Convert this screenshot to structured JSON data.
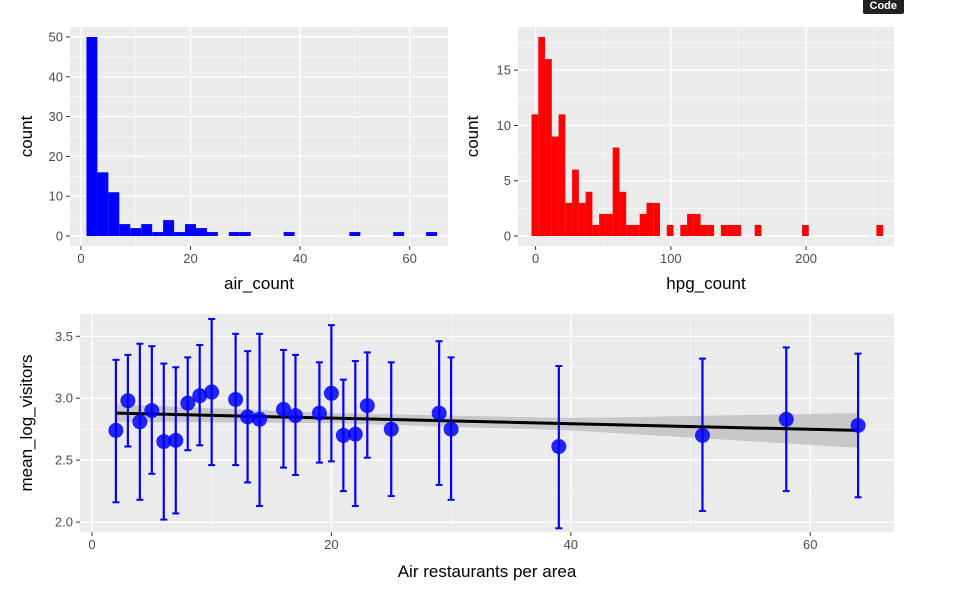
{
  "code_button": {
    "label": "Code"
  },
  "chart_data": [
    {
      "type": "bar",
      "xlabel": "air_count",
      "ylabel": "count",
      "xlim": [
        -2,
        67
      ],
      "ylim": [
        -2.5,
        52.5
      ],
      "xticks": [
        0,
        20,
        40,
        60
      ],
      "yticks": [
        0,
        10,
        20,
        30,
        40,
        50
      ],
      "bin_width": 2,
      "bars_color": "#0000ff",
      "bins": [
        {
          "x0": 1,
          "x1": 3,
          "count": 50
        },
        {
          "x0": 3,
          "x1": 5,
          "count": 16
        },
        {
          "x0": 5,
          "x1": 7,
          "count": 11
        },
        {
          "x0": 7,
          "x1": 9,
          "count": 3
        },
        {
          "x0": 9,
          "x1": 11,
          "count": 2
        },
        {
          "x0": 11,
          "x1": 13,
          "count": 3
        },
        {
          "x0": 13,
          "x1": 15,
          "count": 1
        },
        {
          "x0": 15,
          "x1": 17,
          "count": 4
        },
        {
          "x0": 17,
          "x1": 19,
          "count": 1
        },
        {
          "x0": 19,
          "x1": 21,
          "count": 3
        },
        {
          "x0": 21,
          "x1": 23,
          "count": 2
        },
        {
          "x0": 23,
          "x1": 25,
          "count": 1
        },
        {
          "x0": 27,
          "x1": 29,
          "count": 1
        },
        {
          "x0": 29,
          "x1": 31,
          "count": 1
        },
        {
          "x0": 37,
          "x1": 39,
          "count": 1
        },
        {
          "x0": 49,
          "x1": 51,
          "count": 1
        },
        {
          "x0": 57,
          "x1": 59,
          "count": 1
        },
        {
          "x0": 63,
          "x1": 65,
          "count": 1
        }
      ]
    },
    {
      "type": "bar",
      "xlabel": "hpg_count",
      "ylabel": "count",
      "xlim": [
        -13,
        265
      ],
      "ylim": [
        -0.9,
        18.9
      ],
      "xticks": [
        0,
        100,
        200
      ],
      "yticks": [
        0,
        5,
        10,
        15
      ],
      "bin_width": 5,
      "bars_color": "#ff0000",
      "bins": [
        {
          "x0": -3,
          "x1": 2,
          "count": 11
        },
        {
          "x0": 2,
          "x1": 7,
          "count": 18
        },
        {
          "x0": 7,
          "x1": 12,
          "count": 16
        },
        {
          "x0": 12,
          "x1": 17,
          "count": 9
        },
        {
          "x0": 17,
          "x1": 22,
          "count": 11
        },
        {
          "x0": 22,
          "x1": 27,
          "count": 3
        },
        {
          "x0": 27,
          "x1": 32,
          "count": 6
        },
        {
          "x0": 32,
          "x1": 37,
          "count": 3
        },
        {
          "x0": 37,
          "x1": 42,
          "count": 4
        },
        {
          "x0": 42,
          "x1": 47,
          "count": 1
        },
        {
          "x0": 47,
          "x1": 52,
          "count": 2
        },
        {
          "x0": 52,
          "x1": 57,
          "count": 2
        },
        {
          "x0": 57,
          "x1": 62,
          "count": 8
        },
        {
          "x0": 62,
          "x1": 67,
          "count": 4
        },
        {
          "x0": 67,
          "x1": 72,
          "count": 1
        },
        {
          "x0": 72,
          "x1": 77,
          "count": 1
        },
        {
          "x0": 77,
          "x1": 82,
          "count": 2
        },
        {
          "x0": 82,
          "x1": 87,
          "count": 3
        },
        {
          "x0": 87,
          "x1": 92,
          "count": 3
        },
        {
          "x0": 97,
          "x1": 102,
          "count": 1
        },
        {
          "x0": 107,
          "x1": 112,
          "count": 1
        },
        {
          "x0": 112,
          "x1": 117,
          "count": 2
        },
        {
          "x0": 117,
          "x1": 122,
          "count": 2
        },
        {
          "x0": 122,
          "x1": 127,
          "count": 1
        },
        {
          "x0": 127,
          "x1": 132,
          "count": 1
        },
        {
          "x0": 137,
          "x1": 142,
          "count": 1
        },
        {
          "x0": 142,
          "x1": 147,
          "count": 1
        },
        {
          "x0": 147,
          "x1": 152,
          "count": 1
        },
        {
          "x0": 162,
          "x1": 167,
          "count": 1
        },
        {
          "x0": 197,
          "x1": 202,
          "count": 1
        },
        {
          "x0": 252,
          "x1": 257,
          "count": 1
        }
      ]
    },
    {
      "type": "scatter",
      "xlabel": "Air restaurants per area",
      "ylabel": "mean_log_visitors",
      "xlim": [
        -1,
        67
      ],
      "ylim": [
        1.92,
        3.68
      ],
      "xticks": [
        0,
        20,
        40,
        60
      ],
      "yticks": [
        2.0,
        2.5,
        3.0,
        3.5
      ],
      "point_color": "#0000ff",
      "errorbar_color": "#0000ff",
      "smooth": {
        "color": "#000000",
        "band_color": "#c2c2c2",
        "line": [
          [
            2,
            2.88
          ],
          [
            64,
            2.74
          ]
        ],
        "band_upper": [
          [
            2,
            2.95
          ],
          [
            20,
            2.88
          ],
          [
            40,
            2.84
          ],
          [
            64,
            2.88
          ]
        ],
        "band_lower": [
          [
            2,
            2.81
          ],
          [
            20,
            2.8
          ],
          [
            40,
            2.74
          ],
          [
            64,
            2.6
          ]
        ]
      },
      "points": [
        {
          "x": 2,
          "y": 2.74,
          "ymin": 2.16,
          "ymax": 3.31
        },
        {
          "x": 3,
          "y": 2.98,
          "ymin": 2.61,
          "ymax": 3.35
        },
        {
          "x": 4,
          "y": 2.81,
          "ymin": 2.18,
          "ymax": 3.44
        },
        {
          "x": 5,
          "y": 2.9,
          "ymin": 2.39,
          "ymax": 3.42
        },
        {
          "x": 6,
          "y": 2.65,
          "ymin": 2.02,
          "ymax": 3.28
        },
        {
          "x": 7,
          "y": 2.66,
          "ymin": 2.07,
          "ymax": 3.25
        },
        {
          "x": 8,
          "y": 2.96,
          "ymin": 2.58,
          "ymax": 3.33
        },
        {
          "x": 9,
          "y": 3.02,
          "ymin": 2.62,
          "ymax": 3.43
        },
        {
          "x": 10,
          "y": 3.05,
          "ymin": 2.46,
          "ymax": 3.64
        },
        {
          "x": 12,
          "y": 2.99,
          "ymin": 2.46,
          "ymax": 3.52
        },
        {
          "x": 13,
          "y": 2.85,
          "ymin": 2.32,
          "ymax": 3.38
        },
        {
          "x": 14,
          "y": 2.83,
          "ymin": 2.13,
          "ymax": 3.52
        },
        {
          "x": 16,
          "y": 2.91,
          "ymin": 2.44,
          "ymax": 3.39
        },
        {
          "x": 17,
          "y": 2.86,
          "ymin": 2.38,
          "ymax": 3.35
        },
        {
          "x": 19,
          "y": 2.88,
          "ymin": 2.48,
          "ymax": 3.29
        },
        {
          "x": 20,
          "y": 3.04,
          "ymin": 2.49,
          "ymax": 3.59
        },
        {
          "x": 21,
          "y": 2.7,
          "ymin": 2.25,
          "ymax": 3.15
        },
        {
          "x": 22,
          "y": 2.71,
          "ymin": 2.13,
          "ymax": 3.3
        },
        {
          "x": 23,
          "y": 2.94,
          "ymin": 2.52,
          "ymax": 3.37
        },
        {
          "x": 25,
          "y": 2.75,
          "ymin": 2.21,
          "ymax": 3.29
        },
        {
          "x": 29,
          "y": 2.88,
          "ymin": 2.3,
          "ymax": 3.46
        },
        {
          "x": 30,
          "y": 2.75,
          "ymin": 2.18,
          "ymax": 3.33
        },
        {
          "x": 39,
          "y": 2.61,
          "ymin": 1.95,
          "ymax": 3.26
        },
        {
          "x": 51,
          "y": 2.7,
          "ymin": 2.09,
          "ymax": 3.32
        },
        {
          "x": 58,
          "y": 2.83,
          "ymin": 2.25,
          "ymax": 3.41
        },
        {
          "x": 64,
          "y": 2.78,
          "ymin": 2.2,
          "ymax": 3.36
        }
      ]
    }
  ]
}
